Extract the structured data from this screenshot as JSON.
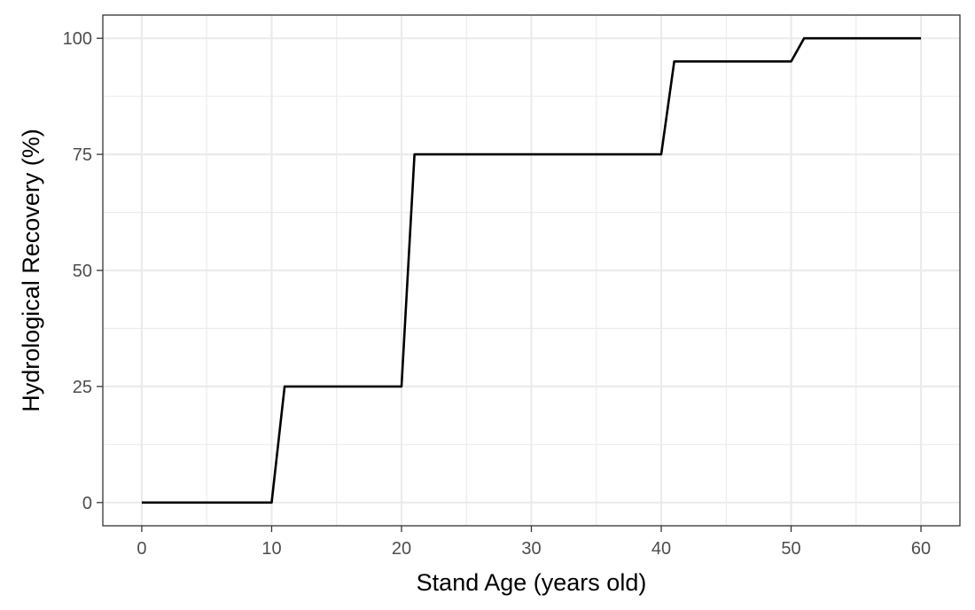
{
  "chart_data": {
    "type": "line",
    "xlabel": "Stand Age (years old)",
    "ylabel": "Hydrological Recovery (%)",
    "xlim": [
      -3,
      63
    ],
    "ylim": [
      -5,
      105
    ],
    "x_ticks": [
      0,
      10,
      20,
      30,
      40,
      50,
      60
    ],
    "y_ticks": [
      0,
      25,
      50,
      75,
      100
    ],
    "grid": true,
    "series": [
      {
        "color": "#000000",
        "x": [
          0,
          10,
          11,
          20,
          21,
          40,
          41,
          50,
          51,
          60
        ],
        "y": [
          0,
          0,
          25,
          25,
          75,
          75,
          95,
          95,
          100,
          100
        ]
      }
    ]
  }
}
